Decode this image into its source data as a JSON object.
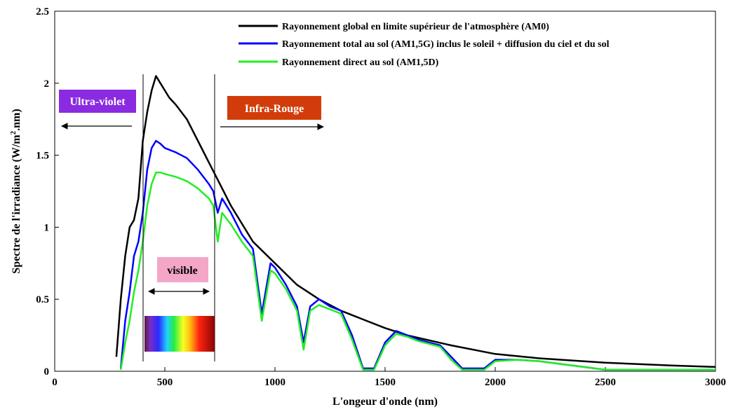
{
  "chart_data": {
    "type": "line",
    "title": "",
    "xlabel": "L'ongeur d'onde (nm)",
    "ylabel_main": "Spectre de l'irradiance (W/m",
    "ylabel_sup": "2",
    "ylabel_tail": ".nm)",
    "xlim": [
      0,
      3000
    ],
    "ylim": [
      0,
      2.5
    ],
    "xticks": [
      0,
      500,
      1000,
      1500,
      2000,
      2500,
      3000
    ],
    "xtick_labels": [
      "0",
      "500",
      "1000",
      "1500",
      "2000",
      "2500",
      "3000"
    ],
    "yticks": [
      0,
      0.5,
      1,
      1.5,
      2,
      2.5
    ],
    "ytick_labels": [
      "0",
      "0.5",
      "1",
      "1.5",
      "2",
      "2.5"
    ],
    "grid": false,
    "legend_position": "top-right",
    "series": [
      {
        "name": "Rayonnement global en limite supérieur de l'atmosphère (AM0)",
        "color": "#000000",
        "x": [
          280,
          300,
          320,
          340,
          360,
          380,
          400,
          420,
          440,
          460,
          480,
          500,
          520,
          550,
          600,
          650,
          700,
          750,
          800,
          900,
          1000,
          1100,
          1200,
          1300,
          1400,
          1500,
          1600,
          1800,
          2000,
          2200,
          2500,
          2800,
          3000
        ],
        "y": [
          0.1,
          0.5,
          0.8,
          1.0,
          1.05,
          1.2,
          1.6,
          1.8,
          1.95,
          2.05,
          2.0,
          1.95,
          1.9,
          1.85,
          1.75,
          1.6,
          1.45,
          1.3,
          1.15,
          0.9,
          0.75,
          0.6,
          0.5,
          0.42,
          0.36,
          0.3,
          0.25,
          0.18,
          0.12,
          0.09,
          0.06,
          0.04,
          0.03
        ]
      },
      {
        "name": "Rayonnement total au sol (AM1,5G) inclus le soleil + diffusion du ciel et du sol",
        "color": "#0000ff",
        "x": [
          300,
          320,
          340,
          360,
          380,
          400,
          420,
          440,
          460,
          480,
          500,
          550,
          600,
          650,
          700,
          720,
          740,
          760,
          800,
          850,
          900,
          940,
          980,
          1000,
          1050,
          1100,
          1130,
          1160,
          1200,
          1250,
          1300,
          1350,
          1400,
          1450,
          1500,
          1550,
          1600,
          1650,
          1700,
          1750,
          1800,
          1850,
          1950,
          2000,
          2100,
          2200,
          2300,
          2400,
          2500,
          2600,
          2800,
          3000
        ],
        "y": [
          0.02,
          0.35,
          0.55,
          0.8,
          0.9,
          1.1,
          1.4,
          1.55,
          1.6,
          1.58,
          1.55,
          1.52,
          1.48,
          1.4,
          1.3,
          1.25,
          1.1,
          1.2,
          1.1,
          0.95,
          0.85,
          0.4,
          0.75,
          0.72,
          0.6,
          0.45,
          0.2,
          0.45,
          0.5,
          0.45,
          0.42,
          0.25,
          0.02,
          0.02,
          0.2,
          0.28,
          0.25,
          0.22,
          0.2,
          0.18,
          0.1,
          0.02,
          0.02,
          0.08,
          0.08,
          0.07,
          0.05,
          0.03,
          0.01,
          0.01,
          0.01,
          0.01
        ]
      },
      {
        "name": "Rayonnement direct au sol (AM1,5D)",
        "color": "#22ee22",
        "x": [
          300,
          320,
          340,
          360,
          380,
          400,
          420,
          440,
          460,
          480,
          500,
          550,
          600,
          650,
          700,
          720,
          740,
          760,
          800,
          850,
          900,
          940,
          980,
          1000,
          1050,
          1100,
          1130,
          1160,
          1200,
          1250,
          1300,
          1350,
          1400,
          1450,
          1500,
          1550,
          1600,
          1650,
          1700,
          1750,
          1800,
          1850,
          1950,
          2000,
          2100,
          2200,
          2300,
          2400,
          2500,
          2600,
          2800,
          3000
        ],
        "y": [
          0.01,
          0.2,
          0.35,
          0.55,
          0.7,
          0.9,
          1.15,
          1.3,
          1.38,
          1.38,
          1.37,
          1.35,
          1.32,
          1.27,
          1.2,
          1.15,
          0.9,
          1.1,
          1.02,
          0.9,
          0.8,
          0.35,
          0.7,
          0.68,
          0.57,
          0.42,
          0.15,
          0.42,
          0.46,
          0.43,
          0.4,
          0.22,
          0.01,
          0.01,
          0.18,
          0.26,
          0.24,
          0.21,
          0.19,
          0.17,
          0.08,
          0.01,
          0.01,
          0.07,
          0.08,
          0.07,
          0.05,
          0.03,
          0.01,
          0.01,
          0.01,
          0.01
        ]
      }
    ],
    "annotations": {
      "ultraviolet": "Ultra-violet",
      "infrared": "Infra-Rouge",
      "visible": "visible"
    },
    "colors": {
      "ultraviolet_box": "#8a2be2",
      "infrared_box": "#d23c0a",
      "visible_box": "#f4a6c8"
    }
  }
}
